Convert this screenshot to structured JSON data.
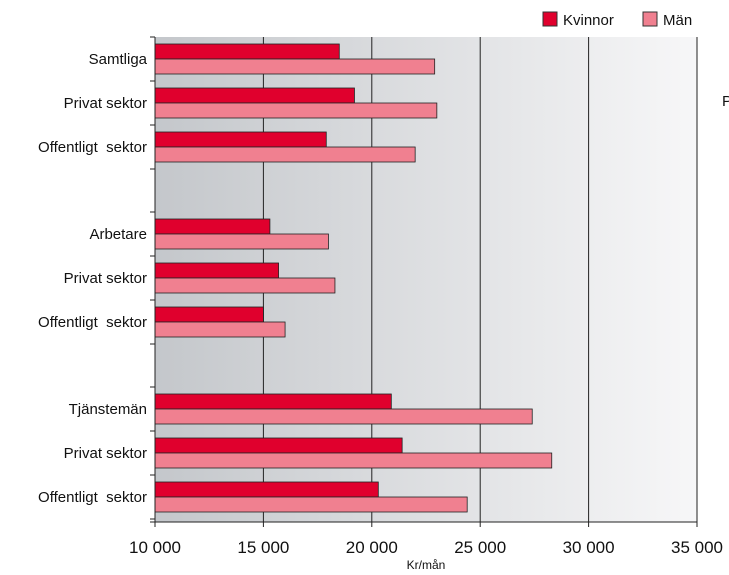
{
  "chart_data": {
    "type": "bar",
    "orientation": "horizontal",
    "xlabel": "Kr/mån",
    "xlim": [
      10000,
      35000
    ],
    "xticks": [
      10000,
      15000,
      20000,
      25000,
      30000,
      35000
    ],
    "xtick_labels": [
      "10 000",
      "15 000",
      "20 000",
      "25 000",
      "30 000",
      "35 000"
    ],
    "legend_position": "top-right",
    "gridlines": "vertical",
    "categories": [
      "Samtliga",
      "Privat sektor",
      "Offentligt  sektor",
      "Arbetare",
      "Privat sektor",
      "Offentligt  sektor",
      "Tjänstemän",
      "Privat sektor",
      "Offentligt  sektor"
    ],
    "groups": [
      [
        0,
        1,
        2
      ],
      [
        3,
        4,
        5
      ],
      [
        6,
        7,
        8
      ]
    ],
    "series": [
      {
        "name": "Kvinnor",
        "color": "#e0002d",
        "values": [
          18500,
          19200,
          17900,
          15300,
          15700,
          15000,
          20900,
          21400,
          20300
        ]
      },
      {
        "name": "Män",
        "color": "#f08090",
        "values": [
          22900,
          23000,
          22000,
          18000,
          18300,
          16000,
          27400,
          28300,
          24400
        ]
      }
    ]
  },
  "stray_text": "P"
}
